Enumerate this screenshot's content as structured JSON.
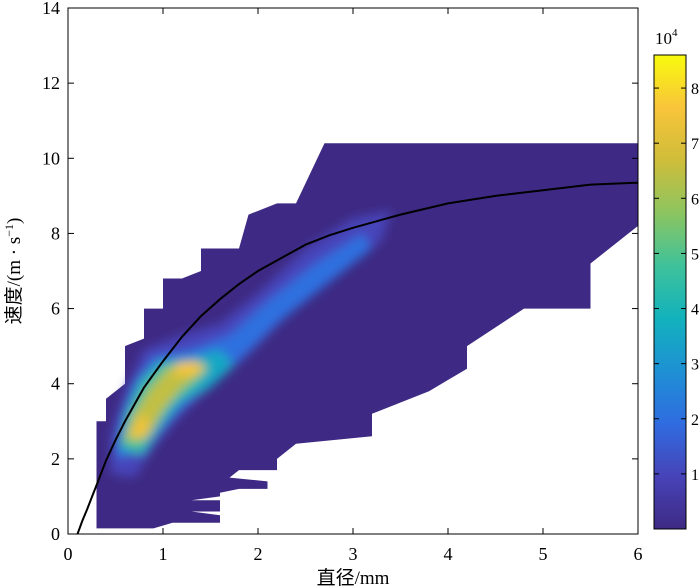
{
  "chart_data": {
    "type": "heatmap",
    "title": "",
    "xlabel": "直径/mm",
    "ylabel_main": "速度/(m · s",
    "ylabel_sup": "−1",
    "ylabel_close": ")",
    "xlim": [
      0,
      6
    ],
    "ylim": [
      0,
      14
    ],
    "x_ticks": [
      "0",
      "1",
      "2",
      "3",
      "4",
      "5",
      "6"
    ],
    "y_ticks": [
      "0",
      "2",
      "4",
      "6",
      "8",
      "10",
      "12",
      "14"
    ],
    "grid": false,
    "colorbar": {
      "multiplier_base": "10",
      "multiplier_exp": "4",
      "range": [
        0,
        8.6
      ],
      "ticks": [
        "1",
        "2",
        "3",
        "4",
        "5",
        "6",
        "7",
        "8"
      ],
      "colormap": "parula",
      "colors": [
        "#3e2a84",
        "#4743b8",
        "#2f6ce0",
        "#1e90d4",
        "#12b2bd",
        "#3fc29a",
        "#8cc560",
        "#cfbd3a",
        "#f8c43a",
        "#f9fb0e"
      ]
    },
    "density_region": {
      "fill_color": "#3e2a84",
      "outline": [
        [
          0.3,
          0.1
        ],
        [
          0.3,
          3.0
        ],
        [
          0.4,
          3.0
        ],
        [
          0.4,
          3.6
        ],
        [
          0.6,
          4.0
        ],
        [
          0.6,
          5.0
        ],
        [
          0.8,
          5.2
        ],
        [
          0.8,
          6.0
        ],
        [
          1.0,
          6.0
        ],
        [
          1.0,
          6.8
        ],
        [
          1.2,
          6.8
        ],
        [
          1.4,
          7.0
        ],
        [
          1.4,
          7.6
        ],
        [
          1.8,
          7.6
        ],
        [
          1.9,
          8.5
        ],
        [
          2.2,
          8.8
        ],
        [
          2.4,
          8.8
        ],
        [
          2.7,
          10.4
        ],
        [
          6.0,
          10.4
        ],
        [
          6.0,
          8.2
        ],
        [
          5.9,
          8.0
        ],
        [
          5.5,
          7.2
        ],
        [
          5.5,
          6.0
        ],
        [
          4.8,
          6.0
        ],
        [
          4.2,
          5.0
        ],
        [
          4.2,
          4.4
        ],
        [
          3.8,
          3.8
        ],
        [
          3.2,
          3.2
        ],
        [
          3.2,
          2.6
        ],
        [
          2.4,
          2.4
        ],
        [
          2.2,
          2.0
        ],
        [
          2.2,
          1.7
        ],
        [
          1.8,
          1.7
        ],
        [
          1.7,
          1.5
        ],
        [
          2.1,
          1.4
        ],
        [
          2.1,
          1.2
        ],
        [
          1.8,
          1.2
        ],
        [
          1.6,
          1.1
        ],
        [
          1.6,
          1.0
        ],
        [
          1.3,
          0.9
        ],
        [
          1.6,
          0.9
        ],
        [
          1.6,
          0.6
        ],
        [
          1.3,
          0.6
        ],
        [
          1.6,
          0.5
        ],
        [
          1.6,
          0.3
        ],
        [
          1.1,
          0.3
        ],
        [
          0.9,
          0.15
        ],
        [
          0.3,
          0.15
        ]
      ],
      "core_levels": [
        {
          "level": 1.0,
          "points": [
            [
              0.45,
              1.6
            ],
            [
              0.45,
              2.6
            ],
            [
              0.6,
              3.8
            ],
            [
              0.8,
              4.9
            ],
            [
              1.2,
              5.3
            ],
            [
              1.6,
              5.6
            ],
            [
              2.0,
              6.4
            ],
            [
              2.5,
              7.6
            ],
            [
              3.0,
              8.4
            ],
            [
              3.4,
              8.6
            ],
            [
              3.3,
              7.8
            ],
            [
              2.8,
              6.9
            ],
            [
              2.3,
              5.8
            ],
            [
              1.9,
              4.8
            ],
            [
              1.5,
              3.9
            ],
            [
              1.2,
              3.2
            ],
            [
              0.9,
              2.3
            ],
            [
              0.7,
              1.5
            ]
          ]
        },
        {
          "level": 2.0,
          "points": [
            [
              0.5,
              2.0
            ],
            [
              0.55,
              3.0
            ],
            [
              0.7,
              4.0
            ],
            [
              0.9,
              4.7
            ],
            [
              1.3,
              4.9
            ],
            [
              1.7,
              5.3
            ],
            [
              2.1,
              6.2
            ],
            [
              2.6,
              7.2
            ],
            [
              3.1,
              8.0
            ],
            [
              3.2,
              7.6
            ],
            [
              2.7,
              6.6
            ],
            [
              2.2,
              5.6
            ],
            [
              1.8,
              4.6
            ],
            [
              1.4,
              3.8
            ],
            [
              1.1,
              3.1
            ],
            [
              0.8,
              2.2
            ]
          ]
        },
        {
          "level": 3.5,
          "points": [
            [
              0.55,
              2.2
            ],
            [
              0.6,
              3.2
            ],
            [
              0.75,
              4.1
            ],
            [
              0.95,
              4.6
            ],
            [
              1.3,
              4.7
            ],
            [
              1.6,
              4.9
            ],
            [
              1.75,
              4.5
            ],
            [
              1.5,
              3.9
            ],
            [
              1.2,
              3.5
            ],
            [
              1.0,
              2.9
            ],
            [
              0.8,
              2.1
            ]
          ]
        },
        {
          "level": 5.0,
          "points": [
            [
              0.55,
              2.4
            ],
            [
              0.65,
              3.2
            ],
            [
              0.8,
              4.0
            ],
            [
              1.0,
              4.5
            ],
            [
              1.3,
              4.6
            ],
            [
              1.5,
              4.5
            ],
            [
              1.35,
              4.0
            ],
            [
              1.1,
              3.5
            ],
            [
              0.9,
              2.8
            ],
            [
              0.75,
              2.2
            ]
          ]
        },
        {
          "level": 6.5,
          "points": [
            [
              0.6,
              2.5
            ],
            [
              0.7,
              3.2
            ],
            [
              0.85,
              3.8
            ],
            [
              1.05,
              4.4
            ],
            [
              1.3,
              4.55
            ],
            [
              1.45,
              4.4
            ],
            [
              1.2,
              3.9
            ],
            [
              1.0,
              3.3
            ],
            [
              0.85,
              2.6
            ]
          ]
        },
        {
          "level": 7.5,
          "points": [
            [
              0.65,
              2.6
            ],
            [
              0.72,
              3.0
            ],
            [
              0.8,
              3.2
            ],
            [
              0.85,
              2.9
            ],
            [
              0.78,
              2.5
            ]
          ]
        },
        {
          "level": 7.6,
          "points": [
            [
              1.1,
              4.25
            ],
            [
              1.15,
              4.55
            ],
            [
              1.35,
              4.6
            ],
            [
              1.45,
              4.4
            ],
            [
              1.3,
              4.2
            ]
          ]
        }
      ]
    },
    "fit_curve": {
      "color": "#000000",
      "x": [
        0.1,
        0.15,
        0.2,
        0.3,
        0.4,
        0.5,
        0.6,
        0.7,
        0.8,
        1.0,
        1.2,
        1.4,
        1.6,
        1.8,
        2.0,
        2.25,
        2.5,
        2.75,
        3.0,
        3.5,
        4.0,
        4.5,
        5.0,
        5.5,
        6.0
      ],
      "y": [
        0.0,
        0.35,
        0.65,
        1.3,
        1.95,
        2.5,
        3.0,
        3.45,
        3.9,
        4.6,
        5.25,
        5.8,
        6.25,
        6.65,
        7.0,
        7.35,
        7.7,
        7.95,
        8.15,
        8.5,
        8.8,
        9.0,
        9.15,
        9.3,
        9.35
      ]
    }
  }
}
